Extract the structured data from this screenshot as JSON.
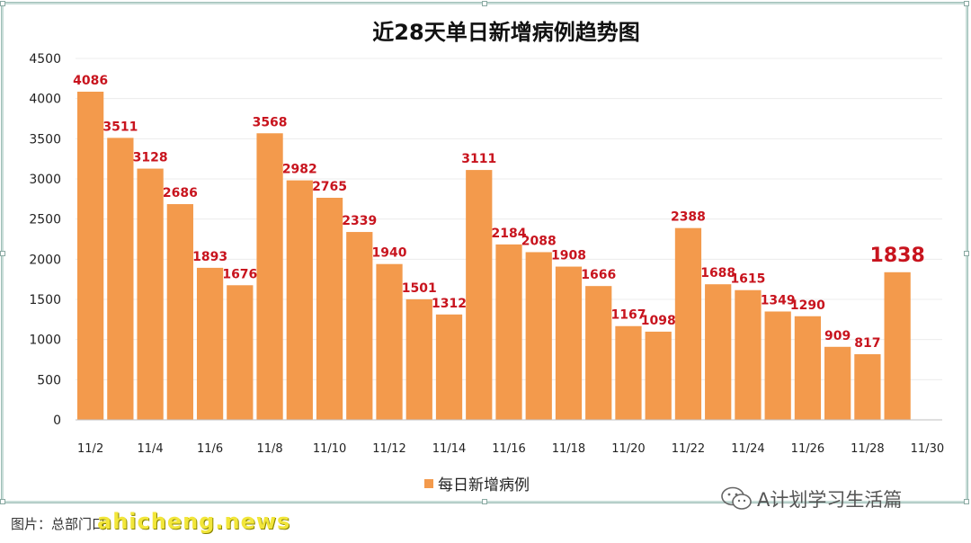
{
  "chart_data": {
    "type": "bar",
    "title": "近28天单日新增病例趋势图",
    "categories": [
      "11/2",
      "11/3",
      "11/4",
      "11/5",
      "11/6",
      "11/7",
      "11/8",
      "11/9",
      "11/10",
      "11/11",
      "11/12",
      "11/13",
      "11/14",
      "11/15",
      "11/16",
      "11/17",
      "11/18",
      "11/19",
      "11/20",
      "11/21",
      "11/22",
      "11/23",
      "11/24",
      "11/25",
      "11/26",
      "11/27",
      "11/28",
      "11/29",
      "11/30"
    ],
    "x_tick_labels": [
      "11/2",
      "11/4",
      "11/6",
      "11/8",
      "11/10",
      "11/12",
      "11/14",
      "11/16",
      "11/18",
      "11/20",
      "11/22",
      "11/24",
      "11/26",
      "11/28",
      "11/30"
    ],
    "series": [
      {
        "name": "每日新增病例",
        "values": [
          4086,
          3511,
          3128,
          2686,
          1893,
          1676,
          3568,
          2982,
          2765,
          2339,
          1940,
          1501,
          1312,
          3111,
          2184,
          2088,
          1908,
          1666,
          1167,
          1098,
          2388,
          1688,
          1615,
          1349,
          1290,
          909,
          817,
          1838,
          null
        ]
      }
    ],
    "highlight_value": 1838,
    "ylim": [
      0,
      4500
    ],
    "yticks": [
      0,
      500,
      1000,
      1500,
      2000,
      2500,
      3000,
      3500,
      4000,
      4500
    ],
    "xlabel": "",
    "ylabel": "",
    "grid": true,
    "legend_position": "bottom-center",
    "colors": {
      "bar": "#f39a4c",
      "data_label": "#c8141e"
    }
  },
  "footer": {
    "source_label": "图片：总部门口",
    "watermark": "ahicheng.news",
    "wechat_account": "A计划学习生活篇"
  }
}
